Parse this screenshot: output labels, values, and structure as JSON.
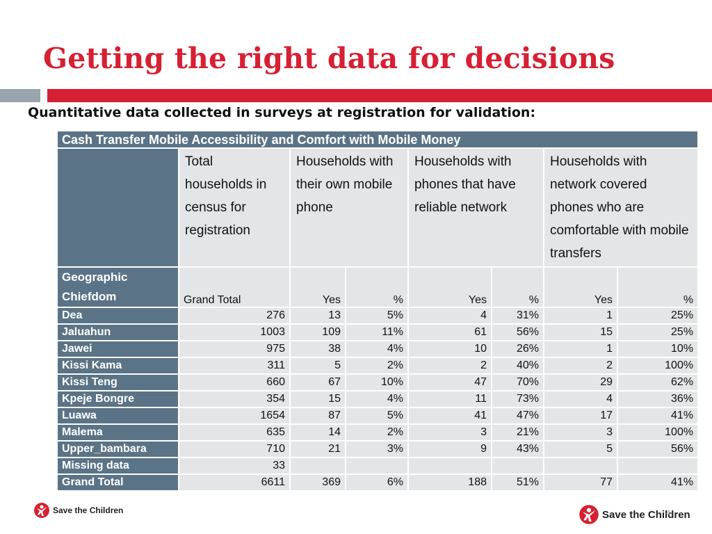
{
  "slide": {
    "title": "Getting the right data for decisions",
    "subtitle": "Quantitative data collected in surveys at registration for validation:",
    "page_number": "4",
    "logo_text": "Save the Children"
  },
  "table": {
    "caption": "Cash Transfer Mobile Accessibility and Comfort with Mobile Money",
    "col_groups": [
      "Total households in census for registration",
      "Households with their own mobile phone",
      "Households with phones that have reliable network",
      "Households with network covered phones who are comfortable with mobile transfers"
    ],
    "row_header_label_1": "Geographic",
    "row_header_label_2": "Chiefdom",
    "subheaders": [
      "Grand Total",
      "Yes",
      "%",
      "Yes",
      "%",
      "Yes",
      "%"
    ],
    "rows": [
      {
        "name": "Dea",
        "total": "276",
        "own_yes": "13",
        "own_pct": "5%",
        "net_yes": "4",
        "net_pct": "31%",
        "comf_yes": "1",
        "comf_pct": "25%"
      },
      {
        "name": "Jaluahun",
        "total": "1003",
        "own_yes": "109",
        "own_pct": "11%",
        "net_yes": "61",
        "net_pct": "56%",
        "comf_yes": "15",
        "comf_pct": "25%"
      },
      {
        "name": "Jawei",
        "total": "975",
        "own_yes": "38",
        "own_pct": "4%",
        "net_yes": "10",
        "net_pct": "26%",
        "comf_yes": "1",
        "comf_pct": "10%"
      },
      {
        "name": "Kissi Kama",
        "total": "311",
        "own_yes": "5",
        "own_pct": "2%",
        "net_yes": "2",
        "net_pct": "40%",
        "comf_yes": "2",
        "comf_pct": "100%"
      },
      {
        "name": "Kissi Teng",
        "total": "660",
        "own_yes": "67",
        "own_pct": "10%",
        "net_yes": "47",
        "net_pct": "70%",
        "comf_yes": "29",
        "comf_pct": "62%"
      },
      {
        "name": "Kpeje Bongre",
        "total": "354",
        "own_yes": "15",
        "own_pct": "4%",
        "net_yes": "11",
        "net_pct": "73%",
        "comf_yes": "4",
        "comf_pct": "36%"
      },
      {
        "name": "Luawa",
        "total": "1654",
        "own_yes": "87",
        "own_pct": "5%",
        "net_yes": "41",
        "net_pct": "47%",
        "comf_yes": "17",
        "comf_pct": "41%"
      },
      {
        "name": "Malema",
        "total": "635",
        "own_yes": "14",
        "own_pct": "2%",
        "net_yes": "3",
        "net_pct": "21%",
        "comf_yes": "3",
        "comf_pct": "100%"
      },
      {
        "name": "Upper_bambara",
        "total": "710",
        "own_yes": "21",
        "own_pct": "3%",
        "net_yes": "9",
        "net_pct": "43%",
        "comf_yes": "5",
        "comf_pct": "56%"
      },
      {
        "name": "Missing data",
        "total": "33",
        "own_yes": "",
        "own_pct": "",
        "net_yes": "",
        "net_pct": "",
        "comf_yes": "",
        "comf_pct": ""
      },
      {
        "name": "Grand Total",
        "total": "6611",
        "own_yes": "369",
        "own_pct": "6%",
        "net_yes": "188",
        "net_pct": "51%",
        "comf_yes": "77",
        "comf_pct": "41%"
      }
    ]
  },
  "colors": {
    "title_red": "#d62033",
    "header_blue": "#5b7386",
    "cell_grey": "#e3e5e7",
    "bar_grey": "#9aa4ad"
  }
}
